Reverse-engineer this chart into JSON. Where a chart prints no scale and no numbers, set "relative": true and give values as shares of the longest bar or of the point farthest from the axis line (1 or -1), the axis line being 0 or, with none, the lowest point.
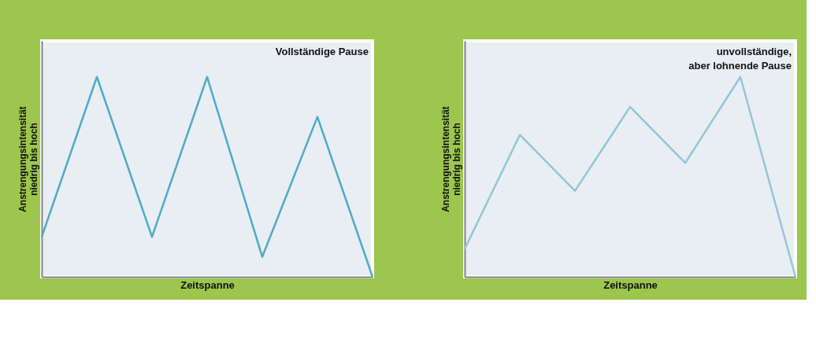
{
  "chart_data": [
    {
      "type": "line",
      "title": "Vollständige Pause",
      "xlabel": "Zeitspanne",
      "ylabel": "Anstrengungsintensität\nniedrig bis hoch",
      "relative": true,
      "tick_labels": false,
      "grid": false,
      "marker": "none",
      "line_style": "solid",
      "categories": [
        null,
        null,
        null,
        null,
        null,
        null,
        null
      ],
      "series": [
        {
          "color": "#4bacc6",
          "values": [
            0.2,
            1,
            0.2,
            1,
            0.1,
            0.8,
            0
          ]
        }
      ]
    },
    {
      "type": "line",
      "title": "unvollständige,\naber lohnende Pause",
      "xlabel": "Zeitspanne",
      "ylabel": "Anstrengungsintensität\nniedrig bis hoch",
      "relative": true,
      "tick_labels": false,
      "grid": false,
      "marker": "none",
      "line_style": "solid",
      "categories": [
        null,
        null,
        null,
        null,
        null,
        null,
        null
      ],
      "series": [
        {
          "color": "#93c6d8",
          "values": [
            0.14,
            0.71,
            0.43,
            0.85,
            0.57,
            1,
            0
          ]
        }
      ]
    }
  ]
}
